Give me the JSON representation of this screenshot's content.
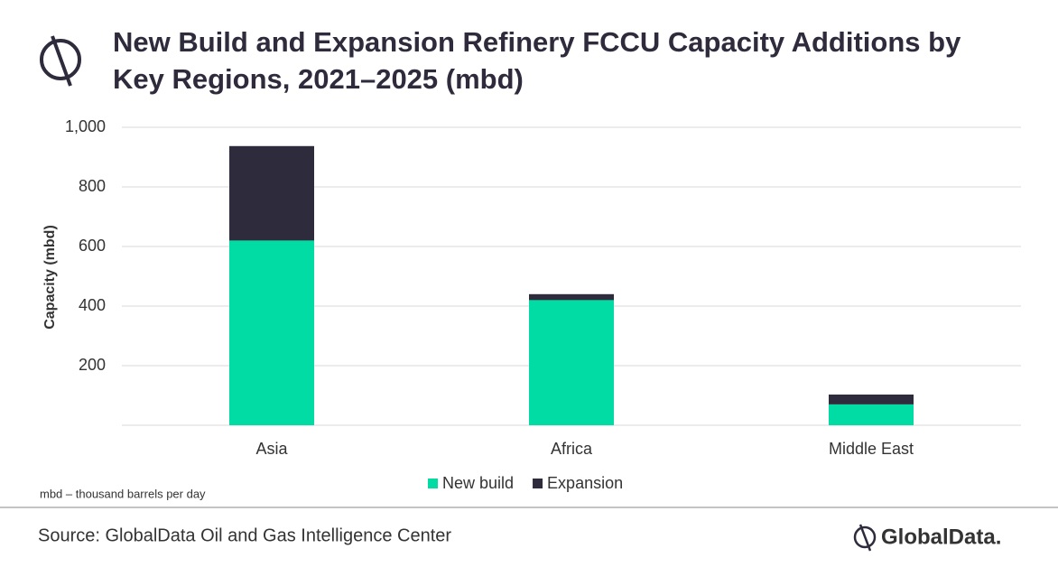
{
  "chart_data": {
    "type": "bar",
    "stacked": true,
    "title": "New Build and Expansion Refinery FCCU Capacity Additions by Key Regions, 2021–2025 (mbd)",
    "y_label": "Capacity (mbd)",
    "categories": [
      "Asia",
      "Africa",
      "Middle East"
    ],
    "series": [
      {
        "name": "New build",
        "color": "#00dca3",
        "values": [
          620,
          420,
          70
        ]
      },
      {
        "name": "Expansion",
        "color": "#2e2b3d",
        "values": [
          317,
          20,
          33
        ]
      }
    ],
    "ylim": [
      0,
      1000
    ],
    "yticks": [
      200,
      400,
      600,
      800,
      {
        "value": 1000,
        "label": "1,000"
      }
    ],
    "grid": true,
    "legend": "bottom",
    "note": "mbd – thousand barrels per day",
    "source": "Source: GlobalData Oil and Gas Intelligence Center",
    "brand": "GlobalData."
  }
}
